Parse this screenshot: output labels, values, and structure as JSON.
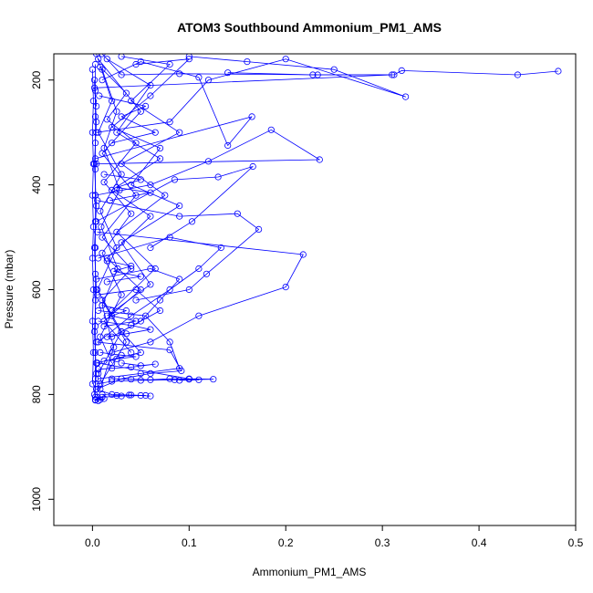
{
  "chart_data": {
    "type": "line",
    "title": "ATOM3 Southbound Ammonium_PM1_AMS",
    "xlabel": "Ammonium_PM1_AMS",
    "ylabel": "Pressure (mbar)",
    "xlim": [
      -0.04,
      0.5
    ],
    "ylim": [
      1050,
      150
    ],
    "y_reversed": true,
    "grid": false,
    "legend": "none",
    "color": "#0000ff",
    "x_ticks": [
      0.0,
      0.1,
      0.2,
      0.3,
      0.4,
      0.5
    ],
    "x_tick_labels": [
      "0.0",
      "0.1",
      "0.2",
      "0.3",
      "0.4",
      "0.5"
    ],
    "y_ticks": [
      200,
      400,
      600,
      800,
      1000
    ],
    "y_tick_labels": [
      "200",
      "400",
      "600",
      "800",
      "1000"
    ],
    "series": [
      {
        "values": [
          [
            0.482,
            183
          ],
          [
            0.44,
            190
          ],
          [
            0.32,
            182
          ],
          [
            0.312,
            190
          ],
          [
            0.228,
            190
          ],
          [
            0.14,
            186
          ]
        ]
      },
      {
        "values": [
          [
            0.01,
            150
          ],
          [
            0.03,
            190
          ],
          [
            0.09,
            188
          ],
          [
            0.233,
            190
          ],
          [
            0.31,
            190
          ],
          [
            0.002,
            215
          ],
          [
            0.004,
            250
          ]
        ]
      },
      {
        "values": [
          [
            0.004,
            300
          ],
          [
            0.08,
            280
          ],
          [
            0.12,
            200
          ],
          [
            0.2,
            160
          ],
          [
            0.324,
            232
          ],
          [
            0.25,
            180
          ],
          [
            0.16,
            165
          ],
          [
            0.1,
            155
          ]
        ]
      },
      {
        "values": [
          [
            0.003,
            350
          ],
          [
            0.165,
            270
          ],
          [
            0.14,
            325
          ],
          [
            0.11,
            195
          ],
          [
            0.05,
            165
          ],
          [
            0.01,
            200
          ]
        ]
      },
      {
        "values": [
          [
            0.004,
            360
          ],
          [
            0.235,
            352
          ],
          [
            0.185,
            295
          ],
          [
            0.12,
            355
          ],
          [
            0.06,
            400
          ],
          [
            0.003,
            420
          ]
        ]
      },
      {
        "values": [
          [
            0.004,
            470
          ],
          [
            0.085,
            390
          ],
          [
            0.13,
            385
          ],
          [
            0.166,
            365
          ],
          [
            0.103,
            470
          ],
          [
            0.06,
            520
          ]
        ]
      },
      {
        "values": [
          [
            0.005,
            490
          ],
          [
            0.218,
            533
          ],
          [
            0.2,
            595
          ],
          [
            0.11,
            650
          ],
          [
            0.06,
            700
          ],
          [
            0.02,
            720
          ]
        ]
      },
      {
        "values": [
          [
            0.005,
            430
          ],
          [
            0.09,
            460
          ],
          [
            0.15,
            455
          ],
          [
            0.172,
            485
          ],
          [
            0.118,
            570
          ],
          [
            0.1,
            600
          ],
          [
            0.045,
            620
          ]
        ]
      },
      {
        "values": [
          [
            0.006,
            540
          ],
          [
            0.08,
            500
          ],
          [
            0.133,
            520
          ],
          [
            0.11,
            560
          ],
          [
            0.08,
            600
          ],
          [
            0.04,
            650
          ],
          [
            0.006,
            700
          ]
        ]
      },
      {
        "values": [
          [
            0.004,
            580
          ],
          [
            0.06,
            560
          ],
          [
            0.09,
            580
          ],
          [
            0.07,
            620
          ],
          [
            0.05,
            660
          ],
          [
            0.02,
            690
          ]
        ]
      },
      {
        "values": [
          [
            0.005,
            610
          ],
          [
            0.045,
            600
          ],
          [
            0.07,
            640
          ],
          [
            0.03,
            680
          ],
          [
            0.05,
            720
          ],
          [
            0.004,
            740
          ]
        ]
      },
      {
        "values": [
          [
            0.006,
            640
          ],
          [
            0.055,
            650
          ],
          [
            0.08,
            700
          ],
          [
            0.09,
            750
          ],
          [
            0.05,
            760
          ],
          [
            0.006,
            770
          ]
        ]
      },
      {
        "values": [
          [
            0.004,
            700
          ],
          [
            0.08,
            715
          ],
          [
            0.092,
            755
          ],
          [
            0.06,
            760
          ],
          [
            0.03,
            770
          ],
          [
            0.004,
            790
          ]
        ]
      },
      {
        "values": [
          [
            0.005,
            740
          ],
          [
            0.1,
            770
          ],
          [
            0.125,
            771
          ],
          [
            0.085,
            772
          ],
          [
            0.05,
            773
          ],
          [
            0.02,
            775
          ],
          [
            0.004,
            780
          ]
        ]
      },
      {
        "values": [
          [
            0.004,
            790
          ],
          [
            0.02,
            800
          ],
          [
            0.04,
            801
          ],
          [
            0.055,
            802
          ],
          [
            0.03,
            803
          ],
          [
            0.01,
            805
          ],
          [
            0.003,
            810
          ]
        ]
      },
      {
        "values": [
          [
            0.004,
            150
          ],
          [
            0.02,
            240
          ],
          [
            0.006,
            300
          ],
          [
            0.03,
            380
          ],
          [
            0.008,
            450
          ],
          [
            0.025,
            520
          ],
          [
            0.005,
            600
          ],
          [
            0.03,
            680
          ],
          [
            0.006,
            760
          ]
        ]
      },
      {
        "values": [
          [
            0.006,
            160
          ],
          [
            0.05,
            260
          ],
          [
            0.01,
            340
          ],
          [
            0.045,
            420
          ],
          [
            0.01,
            500
          ],
          [
            0.04,
            560
          ],
          [
            0.01,
            620
          ],
          [
            0.035,
            700
          ],
          [
            0.008,
            780
          ]
        ]
      },
      {
        "values": [
          [
            0.002,
            200
          ],
          [
            0.004,
            280
          ],
          [
            0.002,
            360
          ],
          [
            0.004,
            440
          ],
          [
            0.002,
            520
          ],
          [
            0.004,
            600
          ],
          [
            0.002,
            680
          ],
          [
            0.004,
            760
          ],
          [
            0.002,
            800
          ]
        ]
      },
      {
        "values": [
          [
            0.015,
            160
          ],
          [
            0.06,
            210
          ],
          [
            0.025,
            300
          ],
          [
            0.07,
            350
          ],
          [
            0.02,
            410
          ],
          [
            0.06,
            460
          ],
          [
            0.015,
            540
          ],
          [
            0.05,
            600
          ],
          [
            0.012,
            660
          ],
          [
            0.04,
            720
          ]
        ]
      },
      {
        "values": [
          [
            0.03,
            155
          ],
          [
            0.08,
            170
          ],
          [
            0.04,
            240
          ],
          [
            0.09,
            300
          ],
          [
            0.03,
            360
          ],
          [
            0.075,
            420
          ],
          [
            0.025,
            490
          ],
          [
            0.065,
            560
          ],
          [
            0.02,
            640
          ]
        ]
      },
      {
        "values": [
          [
            0.045,
            170
          ],
          [
            0.1,
            160
          ],
          [
            0.06,
            230
          ],
          [
            0.02,
            290
          ],
          [
            0.07,
            330
          ],
          [
            0.04,
            400
          ],
          [
            0.09,
            440
          ],
          [
            0.03,
            510
          ],
          [
            0.06,
            590
          ],
          [
            0.015,
            650
          ]
        ]
      },
      {
        "values": [
          [
            0.008,
            175
          ],
          [
            0.035,
            225
          ],
          [
            0.015,
            275
          ],
          [
            0.045,
            320
          ],
          [
            0.012,
            395
          ],
          [
            0.04,
            455
          ],
          [
            0.01,
            530
          ],
          [
            0.03,
            610
          ],
          [
            0.008,
            690
          ],
          [
            0.02,
            740
          ]
        ]
      },
      {
        "values": [
          [
            0.01,
            180
          ],
          [
            0.025,
            260
          ],
          [
            0.012,
            330
          ],
          [
            0.028,
            410
          ],
          [
            0.009,
            480
          ],
          [
            0.026,
            560
          ],
          [
            0.01,
            630
          ],
          [
            0.022,
            710
          ],
          [
            0.008,
            790
          ]
        ]
      },
      {
        "values": [
          [
            0.03,
            740
          ],
          [
            0.05,
            745
          ],
          [
            0.065,
            742
          ],
          [
            0.04,
            748
          ],
          [
            0.02,
            750
          ],
          [
            0.006,
            752
          ]
        ]
      },
      {
        "values": [
          [
            0.008,
            720
          ],
          [
            0.03,
            725
          ],
          [
            0.045,
            728
          ],
          [
            0.025,
            732
          ],
          [
            0.012,
            736
          ]
        ]
      },
      {
        "values": [
          [
            0.006,
            660
          ],
          [
            0.04,
            668
          ],
          [
            0.06,
            676
          ],
          [
            0.035,
            684
          ],
          [
            0.015,
            690
          ]
        ]
      },
      {
        "values": [
          [
            0.007,
            230
          ],
          [
            0.055,
            250
          ],
          [
            0.03,
            270
          ],
          [
            0.065,
            300
          ],
          [
            0.02,
            320
          ]
        ]
      },
      {
        "values": [
          [
            0.012,
            380
          ],
          [
            0.05,
            390
          ],
          [
            0.025,
            405
          ],
          [
            0.06,
            415
          ],
          [
            0.018,
            430
          ]
        ]
      },
      {
        "values": [
          [
            0.015,
            545
          ],
          [
            0.04,
            555
          ],
          [
            0.022,
            565
          ],
          [
            0.05,
            575
          ],
          [
            0.015,
            585
          ]
        ]
      },
      {
        "values": [
          [
            0.01,
            630
          ],
          [
            0.035,
            640
          ],
          [
            0.02,
            650
          ],
          [
            0.045,
            660
          ],
          [
            0.012,
            670
          ]
        ]
      },
      {
        "values": [
          [
            0.003,
            170
          ],
          [
            0.003,
            220
          ],
          [
            0.003,
            270
          ],
          [
            0.003,
            320
          ],
          [
            0.003,
            370
          ],
          [
            0.003,
            420
          ],
          [
            0.003,
            470
          ],
          [
            0.003,
            520
          ],
          [
            0.003,
            570
          ],
          [
            0.003,
            620
          ],
          [
            0.003,
            670
          ],
          [
            0.003,
            720
          ],
          [
            0.003,
            770
          ],
          [
            0.003,
            805
          ]
        ]
      },
      {
        "values": [
          [
            0.0,
            180
          ],
          [
            0.001,
            240
          ],
          [
            0.0,
            300
          ],
          [
            0.001,
            360
          ],
          [
            0.0,
            420
          ],
          [
            0.001,
            480
          ],
          [
            0.0,
            540
          ],
          [
            0.001,
            600
          ],
          [
            0.0,
            660
          ],
          [
            0.001,
            720
          ],
          [
            0.0,
            780
          ]
        ]
      },
      {
        "values": [
          [
            0.02,
            770
          ],
          [
            0.04,
            771
          ],
          [
            0.06,
            772
          ],
          [
            0.08,
            770
          ],
          [
            0.1,
            771
          ],
          [
            0.11,
            772
          ],
          [
            0.09,
            773
          ]
        ]
      },
      {
        "values": [
          [
            0.01,
            800
          ],
          [
            0.025,
            802
          ],
          [
            0.038,
            801
          ],
          [
            0.05,
            802
          ],
          [
            0.06,
            803
          ]
        ]
      },
      {
        "values": [
          [
            0.005,
            805
          ],
          [
            0.008,
            810
          ],
          [
            0.012,
            808
          ],
          [
            0.006,
            812
          ],
          [
            0.003,
            811
          ]
        ]
      }
    ]
  }
}
